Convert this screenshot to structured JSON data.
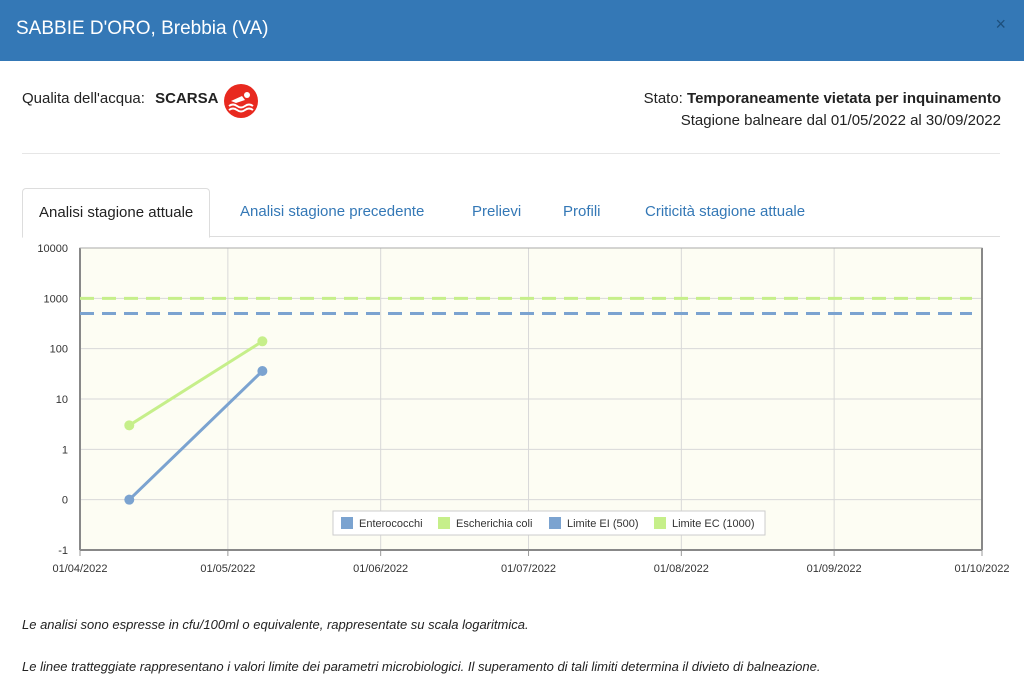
{
  "header": {
    "title": "SABBIE D'ORO, Brebbia (VA)",
    "close_label": "×"
  },
  "quality": {
    "label": "Qualita dell'acqua:",
    "value": "SCARSA",
    "icon": "swimmer-icon",
    "icon_color": "#e8291f"
  },
  "status": {
    "label": "Stato:",
    "value": "Temporaneamente vietata per inquinamento",
    "season": "Stagione balneare dal 01/05/2022 al 30/09/2022"
  },
  "tabs": [
    {
      "label": "Analisi stagione attuale",
      "active": true
    },
    {
      "label": "Analisi stagione precedente",
      "active": false
    },
    {
      "label": "Prelievi",
      "active": false
    },
    {
      "label": "Profili",
      "active": false
    },
    {
      "label": "Criticità stagione attuale",
      "active": false
    }
  ],
  "chart_data": {
    "type": "line",
    "y_scale": "log",
    "y_ticks": [
      "10000",
      "1000",
      "100",
      "10",
      "1",
      "0",
      "-1"
    ],
    "x_ticks": [
      "01/04/2022",
      "01/05/2022",
      "01/06/2022",
      "01/07/2022",
      "01/08/2022",
      "01/09/2022",
      "01/10/2022"
    ],
    "xlim": [
      "2022-04-01",
      "2022-10-01"
    ],
    "grid": true,
    "legend_position": "bottom-right",
    "series": [
      {
        "name": "Enterococchi",
        "color": "#7ba3d0",
        "dashed": false,
        "points": [
          {
            "x": "2022-04-11",
            "y": 0
          },
          {
            "x": "2022-05-08",
            "y": 36
          }
        ]
      },
      {
        "name": "Escherichia coli",
        "color": "#c6ef8a",
        "dashed": false,
        "points": [
          {
            "x": "2022-04-11",
            "y": 3
          },
          {
            "x": "2022-05-08",
            "y": 140
          }
        ]
      },
      {
        "name": "Limite EI (500)",
        "color": "#7ba3d0",
        "dashed": true,
        "constant": 500
      },
      {
        "name": "Limite EC (1000)",
        "color": "#c6ef8a",
        "dashed": true,
        "constant": 1000
      }
    ]
  },
  "notes": [
    "Le analisi sono espresse in cfu/100ml o equivalente, rappresentate su scala logaritmica.",
    "Le linee tratteggiate rappresentano i valori limite dei parametri microbiologici. Il superamento di tali limiti determina il divieto di balneazione."
  ]
}
